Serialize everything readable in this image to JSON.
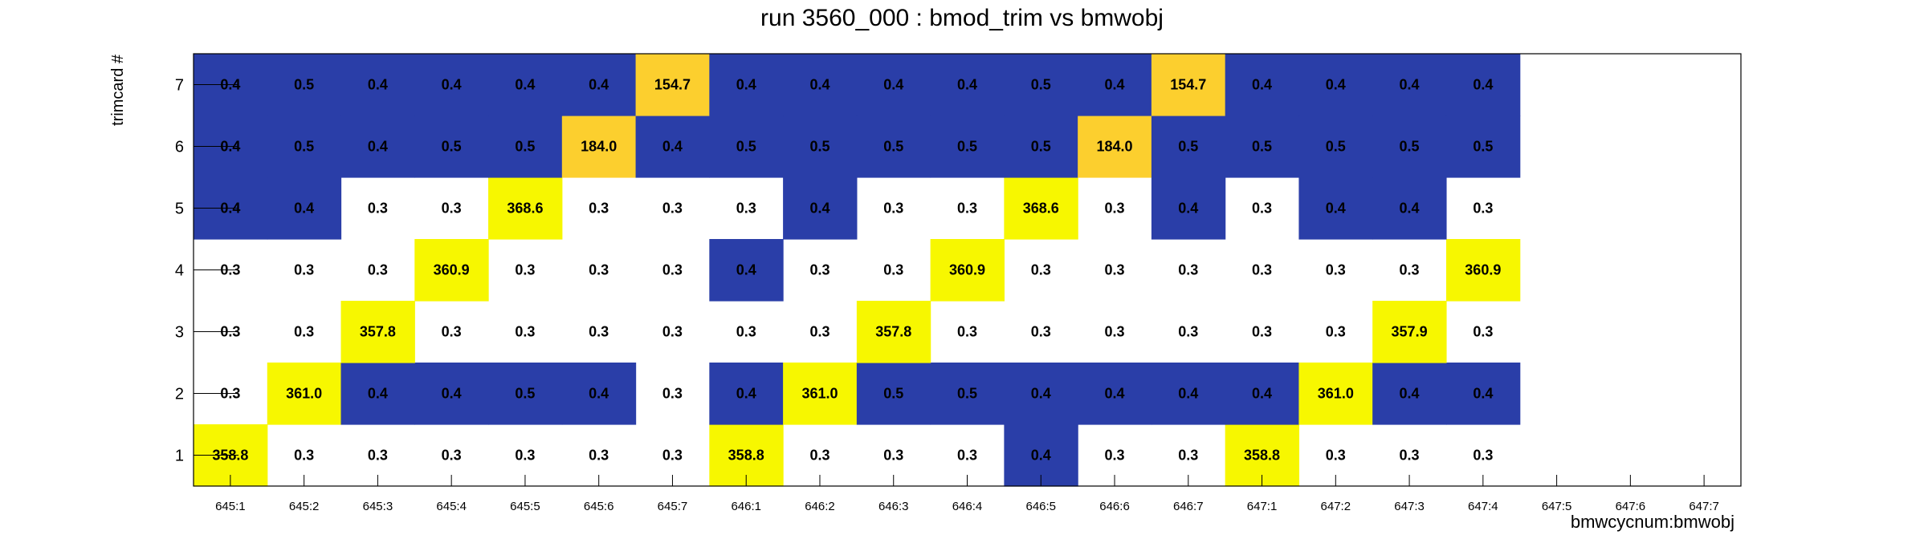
{
  "chart_data": {
    "type": "heatmap",
    "title": "run 3560_000 : bmod_trim vs bmwobj",
    "xlabel": "bmwcycnum:bmwobj",
    "ylabel": "trimcard #",
    "x_categories": [
      "645:1",
      "645:2",
      "645:3",
      "645:4",
      "645:5",
      "645:6",
      "645:7",
      "646:1",
      "646:2",
      "646:3",
      "646:4",
      "646:5",
      "646:6",
      "646:7",
      "647:1",
      "647:2",
      "647:3",
      "647:4",
      "647:5",
      "647:6",
      "647:7"
    ],
    "y_categories": [
      "1",
      "2",
      "3",
      "4",
      "5",
      "6",
      "7"
    ],
    "rows": [
      {
        "y": "1",
        "values": [
          358.8,
          0.3,
          0.3,
          0.3,
          0.3,
          0.3,
          0.3,
          358.8,
          0.3,
          0.3,
          0.3,
          0.4,
          0.3,
          0.3,
          358.8,
          0.3,
          0.3,
          0.3,
          null,
          null,
          null
        ]
      },
      {
        "y": "2",
        "values": [
          0.3,
          361.0,
          0.4,
          0.4,
          0.5,
          0.4,
          0.3,
          0.4,
          361.0,
          0.5,
          0.5,
          0.4,
          0.4,
          0.4,
          0.4,
          361.0,
          0.4,
          0.4,
          null,
          null,
          null
        ]
      },
      {
        "y": "3",
        "values": [
          0.3,
          0.3,
          357.8,
          0.3,
          0.3,
          0.3,
          0.3,
          0.3,
          0.3,
          357.8,
          0.3,
          0.3,
          0.3,
          0.3,
          0.3,
          0.3,
          357.9,
          0.3,
          null,
          null,
          null
        ]
      },
      {
        "y": "4",
        "values": [
          0.3,
          0.3,
          0.3,
          360.9,
          0.3,
          0.3,
          0.3,
          0.4,
          0.3,
          0.3,
          360.9,
          0.3,
          0.3,
          0.3,
          0.3,
          0.3,
          0.3,
          360.9,
          null,
          null,
          null
        ]
      },
      {
        "y": "5",
        "values": [
          0.4,
          0.4,
          0.3,
          0.3,
          368.6,
          0.3,
          0.3,
          0.3,
          0.4,
          0.3,
          0.3,
          368.6,
          0.3,
          0.4,
          0.3,
          0.4,
          0.4,
          0.3,
          null,
          null,
          null
        ]
      },
      {
        "y": "6",
        "values": [
          0.4,
          0.5,
          0.4,
          0.5,
          0.5,
          184.0,
          0.4,
          0.5,
          0.5,
          0.5,
          0.5,
          0.5,
          184.0,
          0.5,
          0.5,
          0.5,
          0.5,
          0.5,
          null,
          null,
          null
        ]
      },
      {
        "y": "7",
        "values": [
          0.4,
          0.5,
          0.4,
          0.4,
          0.4,
          0.4,
          154.7,
          0.4,
          0.4,
          0.4,
          0.4,
          0.5,
          0.4,
          154.7,
          0.4,
          0.4,
          0.4,
          0.4,
          null,
          null,
          null
        ]
      }
    ],
    "legend": "none",
    "grid": false,
    "colors": {
      "low_blue": "#2a3ea8",
      "high_yellow": "#f7f700",
      "mid_orange": "#fccf2e",
      "background": "#ffffff"
    }
  }
}
